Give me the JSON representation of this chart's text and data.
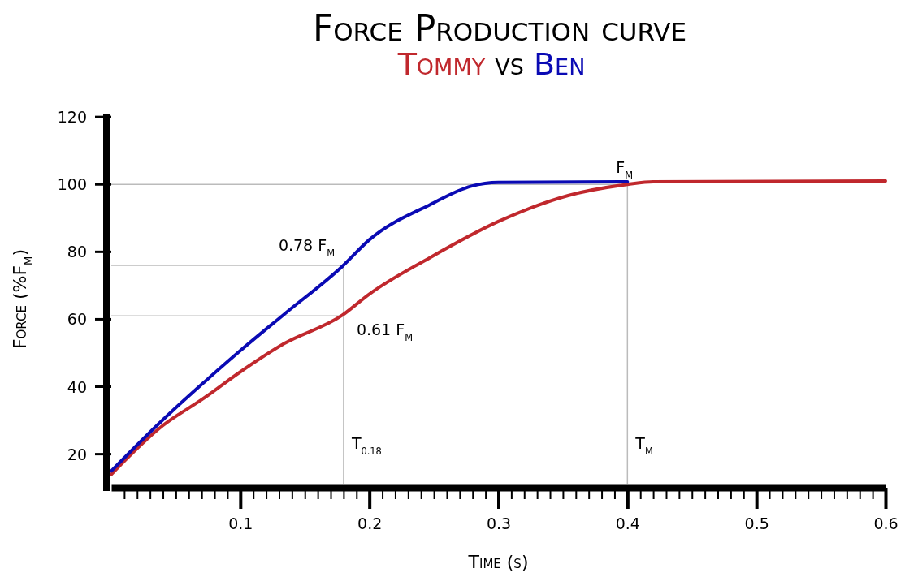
{
  "chart_data": {
    "type": "line",
    "title": "Force Production curve",
    "subtitle": "vs",
    "xlabel": "Time (s)",
    "ylabel": "Force (%F$_{M}$)",
    "legend": "top",
    "xlim": [
      0,
      0.6
    ],
    "ylim": [
      11,
      121
    ],
    "xticks": [
      {
        "value": 0.01,
        "label": null
      },
      {
        "value": 0.02,
        "label": null
      },
      {
        "value": 0.03,
        "label": null
      },
      {
        "value": 0.04,
        "label": null
      },
      {
        "value": 0.05,
        "label": null
      },
      {
        "value": 0.06,
        "label": null
      },
      {
        "value": 0.07,
        "label": null
      },
      {
        "value": 0.08,
        "label": null
      },
      {
        "value": 0.09,
        "label": null
      },
      0.1,
      {
        "value": 0.11,
        "label": null
      },
      {
        "value": 0.12,
        "label": null
      },
      {
        "value": 0.13,
        "label": null
      },
      {
        "value": 0.14,
        "label": null
      },
      {
        "value": 0.15,
        "label": null
      },
      {
        "value": 0.16,
        "label": null
      },
      {
        "value": 0.17,
        "label": null
      },
      {
        "value": 0.18,
        "label": null
      },
      {
        "value": 0.19,
        "label": null
      },
      0.2,
      {
        "value": 0.21,
        "label": null
      },
      {
        "value": 0.22,
        "label": null
      },
      {
        "value": 0.23,
        "label": null
      },
      {
        "value": 0.24,
        "label": null
      },
      {
        "value": 0.25,
        "label": null
      },
      {
        "value": 0.26,
        "label": null
      },
      {
        "value": 0.27,
        "label": null
      },
      {
        "value": 0.28,
        "label": null
      },
      {
        "value": 0.29,
        "label": null
      },
      0.3,
      {
        "value": 0.31,
        "label": null
      },
      {
        "value": 0.32,
        "label": null
      },
      {
        "value": 0.33,
        "label": null
      },
      {
        "value": 0.34,
        "label": null
      },
      {
        "value": 0.35,
        "label": null
      },
      {
        "value": 0.36,
        "label": null
      },
      {
        "value": 0.37,
        "label": null
      },
      {
        "value": 0.38,
        "label": null
      },
      {
        "value": 0.39,
        "label": null
      },
      0.4,
      {
        "value": 0.41,
        "label": null
      },
      {
        "value": 0.42,
        "label": null
      },
      {
        "value": 0.43,
        "label": null
      },
      {
        "value": 0.44,
        "label": null
      },
      {
        "value": 0.45,
        "label": null
      },
      {
        "value": 0.46,
        "label": null
      },
      {
        "value": 0.47,
        "label": null
      },
      {
        "value": 0.48,
        "label": null
      },
      {
        "value": 0.49,
        "label": null
      },
      0.5,
      {
        "value": 0.51,
        "label": null
      },
      {
        "value": 0.52,
        "label": null
      },
      {
        "value": 0.53,
        "label": null
      },
      {
        "value": 0.54,
        "label": null
      },
      {
        "value": 0.55,
        "label": null
      },
      {
        "value": 0.56,
        "label": null
      },
      {
        "value": 0.57,
        "label": null
      },
      {
        "value": 0.58,
        "label": null
      },
      {
        "value": 0.59,
        "label": null
      },
      0.6
    ],
    "yticks": [
      20,
      40,
      60,
      80,
      100,
      120
    ],
    "grid": false,
    "line_style": "solid",
    "ref_lines": [
      {
        "axis": "x",
        "value": 0.18,
        "label": "T$_{0.18}$",
        "color": "#bbbbbb"
      },
      {
        "axis": "x",
        "value": 0.4,
        "label": "T$_{M}$",
        "color": "#bbbbbb"
      },
      {
        "axis": "y",
        "value": 100,
        "label": "F$_{M}$",
        "color": "#bbbbbb"
      },
      {
        "axis": "y",
        "value": 76,
        "label": "0.78 F$_{M}$",
        "color": "#bbbbbb"
      },
      {
        "axis": "y",
        "value": 61,
        "label": "0.61 F$_{M}$",
        "color": "#bbbbbb"
      }
    ],
    "series": [
      {
        "name": "Tommy",
        "color": "#c0282d",
        "x": [
          0,
          0.04,
          0.071,
          0.1,
          0.134,
          0.179,
          0.2,
          0.247,
          0.3,
          0.354,
          0.4,
          0.42,
          0.6
        ],
        "values": [
          14,
          28.5,
          36.4,
          44.4,
          52.8,
          61.2,
          67.5,
          78.3,
          89,
          96.7,
          100,
          100.8,
          101
        ]
      },
      {
        "name": "Ben",
        "color": "#0a0ab4",
        "x": [
          0,
          0.04,
          0.071,
          0.1,
          0.134,
          0.179,
          0.2,
          0.247,
          0.279,
          0.3,
          0.4
        ],
        "values": [
          15,
          30.2,
          41,
          50.7,
          61.5,
          75.7,
          83.6,
          94,
          99.5,
          100.6,
          100.8
        ]
      }
    ]
  }
}
